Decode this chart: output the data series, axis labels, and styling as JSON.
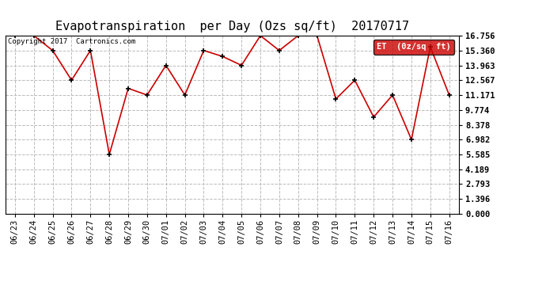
{
  "title": "Evapotranspiration  per Day (Ozs sq/ft)  20170717",
  "copyright_text": "Copyright 2017  Cartronics.com",
  "legend_label": "ET  (0z/sq  ft)",
  "dates": [
    "06/23",
    "06/24",
    "06/25",
    "06/26",
    "06/27",
    "06/28",
    "06/29",
    "06/30",
    "07/01",
    "07/02",
    "07/03",
    "07/04",
    "07/05",
    "07/06",
    "07/07",
    "07/08",
    "07/09",
    "07/10",
    "07/11",
    "07/12",
    "07/13",
    "07/14",
    "07/15",
    "07/16"
  ],
  "values": [
    16.756,
    16.756,
    15.36,
    12.567,
    15.36,
    5.585,
    11.8,
    11.171,
    13.963,
    11.171,
    15.36,
    14.8,
    13.963,
    16.756,
    15.36,
    16.756,
    16.756,
    10.8,
    12.567,
    9.1,
    11.171,
    6.982,
    15.7,
    11.171
  ],
  "line_color": "#cc0000",
  "marker_color": "#000000",
  "background_color": "#ffffff",
  "grid_color": "#bbbbbb",
  "ylim": [
    0.0,
    16.756
  ],
  "yticks": [
    0.0,
    1.396,
    2.793,
    4.189,
    5.585,
    6.982,
    8.378,
    9.774,
    11.171,
    12.567,
    13.963,
    15.36,
    16.756
  ],
  "title_fontsize": 11,
  "tick_fontsize": 7.5,
  "legend_bg": "#cc0000",
  "legend_text_color": "#ffffff"
}
